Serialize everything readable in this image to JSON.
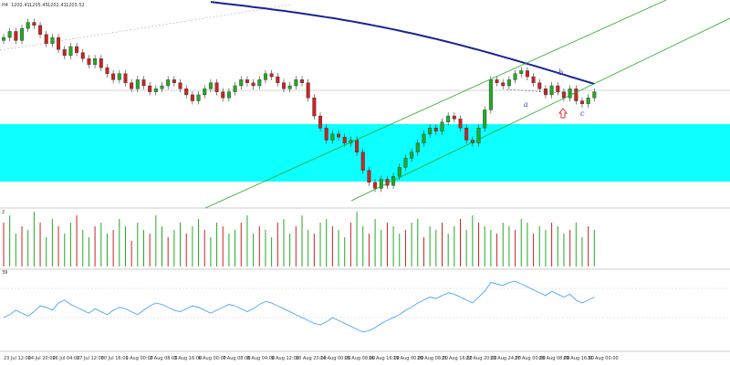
{
  "header": {
    "symbol": "H4",
    "ohlc": [
      "1202.41",
      "1205.45",
      "1202.41",
      "1203.52"
    ]
  },
  "volume_panel": {
    "label": "2"
  },
  "indicator_panel": {
    "label": "39"
  },
  "colors": {
    "bull": "#22aa22",
    "bear": "#cc2222",
    "ma": "#1a2396",
    "channel": "#22aa22",
    "zone": "#00ffff",
    "indicator": "#3399ff",
    "wave_labels": "#3344cc",
    "arrow": "#dd3333"
  },
  "wave_labels": [
    "a",
    "b",
    "c"
  ],
  "chart_data": [
    {
      "type": "candlestick",
      "description_source": "main price panel",
      "x_tick_labels": [
        "23 Jul 12:00",
        "24 Jul 20:00",
        "26 Jul 04:00",
        "27 Jul 12:00",
        "30 Jul 16:00",
        "1 Aug 00:00",
        "2 Aug 08:00",
        "3 Aug 16:00",
        "6 Aug 00:00",
        "7 Aug 08:00",
        "8 Aug 04:00",
        "9 Aug 12:00",
        "10 Aug 20:00",
        "14 Aug 00:00",
        "15 Aug 08:00",
        "16 Aug 16:00",
        "19 Aug 00:00",
        "20 Aug 08:00",
        "21 Aug 16:00",
        "22 Aug 20:00",
        "23 Aug 24:00",
        "27 Aug 00:00",
        "28 Aug 08:00",
        "29 Aug 16:00",
        "31 Aug 00:00"
      ],
      "close_values": [
        1210,
        1212,
        1209,
        1213,
        1215,
        1214,
        1211,
        1208,
        1210,
        1206,
        1204,
        1207,
        1205,
        1203,
        1201,
        1203,
        1200,
        1198,
        1196,
        1198,
        1195,
        1193,
        1196,
        1194,
        1192,
        1193,
        1194,
        1196,
        1195,
        1193,
        1191,
        1189,
        1191,
        1193,
        1195,
        1192,
        1190,
        1192,
        1194,
        1196,
        1195,
        1194,
        1196,
        1198,
        1197,
        1195,
        1193,
        1194,
        1196,
        1195,
        1190,
        1184,
        1180,
        1176,
        1178,
        1177,
        1175,
        1176,
        1172,
        1166,
        1162,
        1160,
        1163,
        1161,
        1164,
        1167,
        1170,
        1172,
        1175,
        1178,
        1180,
        1179,
        1182,
        1184,
        1183,
        1180,
        1176,
        1175,
        1180,
        1186,
        1196,
        1195,
        1194,
        1196,
        1198,
        1199,
        1197,
        1195,
        1193,
        1191,
        1194,
        1192,
        1190,
        1193,
        1189,
        1188,
        1190,
        1192
      ]
    },
    {
      "type": "bar",
      "description_source": "volume panel",
      "values": [
        12,
        14,
        9,
        11,
        10,
        15,
        12,
        8,
        13,
        11,
        9,
        12,
        14,
        10,
        8,
        11,
        12,
        9,
        10,
        13,
        11,
        7,
        12,
        10,
        9,
        14,
        11,
        8,
        10,
        12,
        9,
        11,
        13,
        10,
        8,
        12,
        11,
        9,
        10,
        12,
        14,
        9,
        11,
        10,
        8,
        12,
        13,
        9,
        11,
        14,
        10,
        9,
        12,
        13,
        11,
        10,
        8,
        12,
        15,
        11,
        9,
        13,
        10,
        12,
        11,
        9,
        10,
        12,
        13,
        8,
        11,
        10,
        12,
        9,
        11,
        13,
        10,
        14,
        12,
        11,
        10,
        9,
        12,
        11,
        10,
        13,
        12,
        9,
        11,
        10,
        12,
        11,
        9,
        10,
        12,
        8,
        11,
        10
      ]
    },
    {
      "type": "line",
      "description_source": "oscillator panel",
      "values": [
        40,
        42,
        45,
        43,
        41,
        44,
        48,
        47,
        45,
        50,
        52,
        49,
        47,
        45,
        43,
        46,
        44,
        42,
        45,
        47,
        46,
        44,
        42,
        45,
        48,
        50,
        49,
        47,
        45,
        44,
        46,
        48,
        47,
        45,
        43,
        45,
        47,
        49,
        48,
        46,
        44,
        46,
        49,
        51,
        50,
        48,
        46,
        44,
        42,
        40,
        38,
        36,
        35,
        37,
        40,
        38,
        36,
        34,
        32,
        30,
        31,
        33,
        36,
        38,
        40,
        42,
        45,
        47,
        50,
        52,
        54,
        53,
        55,
        57,
        56,
        54,
        52,
        50,
        54,
        58,
        64,
        63,
        62,
        64,
        65,
        63,
        61,
        59,
        57,
        55,
        58,
        56,
        54,
        56,
        52,
        50,
        52,
        54
      ]
    }
  ]
}
